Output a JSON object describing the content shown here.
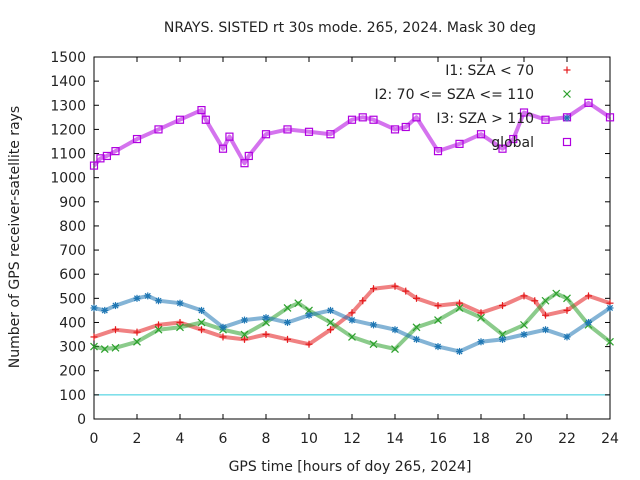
{
  "chart_data": {
    "type": "scatter",
    "title": "NRAYS. SISTED rt 30s mode. 265, 2024. Mask 30 deg",
    "xlabel": "GPS time [hours of doy 265, 2024]",
    "ylabel": "Number of GPS receiver-satellite rays",
    "xlim": [
      0,
      24
    ],
    "ylim": [
      0,
      1500
    ],
    "x_ticks": [
      "0",
      "2",
      "4",
      "6",
      "8",
      "10",
      "12",
      "14",
      "16",
      "18",
      "20",
      "22",
      "24"
    ],
    "y_ticks": [
      "0",
      "100",
      "200",
      "300",
      "400",
      "500",
      "600",
      "700",
      "800",
      "900",
      "1000",
      "1100",
      "1200",
      "1300",
      "1400",
      "1500"
    ],
    "grid": false,
    "legend_position": "top-right",
    "reference_line": {
      "y": 100,
      "color": "#33ccdd"
    },
    "series": [
      {
        "name": "I1: SZA < 70",
        "marker": "+",
        "color": "#e41a1c",
        "x": [
          0,
          1,
          2,
          3,
          4,
          5,
          6,
          7,
          8,
          9,
          10,
          11,
          12,
          12.5,
          13,
          14,
          14.5,
          15,
          16,
          17,
          18,
          19,
          20,
          20.5,
          21,
          22,
          23,
          24
        ],
        "y": [
          340,
          370,
          360,
          390,
          400,
          370,
          340,
          330,
          350,
          330,
          310,
          370,
          440,
          490,
          540,
          550,
          530,
          500,
          470,
          480,
          440,
          470,
          510,
          490,
          430,
          450,
          510,
          480
        ]
      },
      {
        "name": "I2: 70 <= SZA <= 110",
        "marker": "x",
        "color": "#2ca02c",
        "x": [
          0,
          0.5,
          1,
          2,
          3,
          4,
          5,
          6,
          7,
          8,
          9,
          9.5,
          10,
          11,
          12,
          13,
          14,
          15,
          16,
          17,
          18,
          19,
          20,
          21,
          21.5,
          22,
          23,
          24
        ],
        "y": [
          300,
          290,
          295,
          320,
          370,
          380,
          400,
          370,
          350,
          400,
          460,
          480,
          450,
          400,
          340,
          310,
          290,
          380,
          410,
          460,
          420,
          350,
          390,
          490,
          520,
          500,
          390,
          320
        ]
      },
      {
        "name": "I3: SZA > 110",
        "marker": "*",
        "color": "#1f77b4",
        "x": [
          0,
          0.5,
          1,
          2,
          2.5,
          3,
          4,
          5,
          6,
          7,
          8,
          9,
          10,
          11,
          12,
          13,
          14,
          15,
          16,
          17,
          18,
          19,
          20,
          21,
          22,
          23,
          24
        ],
        "y": [
          460,
          450,
          470,
          500,
          510,
          490,
          480,
          450,
          380,
          410,
          420,
          400,
          430,
          450,
          410,
          390,
          370,
          330,
          300,
          280,
          320,
          330,
          350,
          370,
          340,
          400,
          460
        ]
      },
      {
        "name": "global",
        "marker": "square",
        "color": "#b000e0",
        "x": [
          0,
          0.3,
          0.6,
          1,
          2,
          3,
          4,
          5,
          5.2,
          6,
          6.3,
          7,
          7.2,
          8,
          9,
          10,
          11,
          12,
          12.5,
          13,
          14,
          14.5,
          15,
          16,
          17,
          18,
          19,
          19.5,
          20,
          21,
          22,
          23,
          24
        ],
        "y": [
          1050,
          1080,
          1090,
          1110,
          1160,
          1200,
          1240,
          1280,
          1240,
          1120,
          1170,
          1060,
          1090,
          1180,
          1200,
          1190,
          1180,
          1240,
          1250,
          1240,
          1200,
          1210,
          1250,
          1110,
          1140,
          1180,
          1120,
          1160,
          1270,
          1240,
          1250,
          1310,
          1250
        ]
      }
    ]
  }
}
